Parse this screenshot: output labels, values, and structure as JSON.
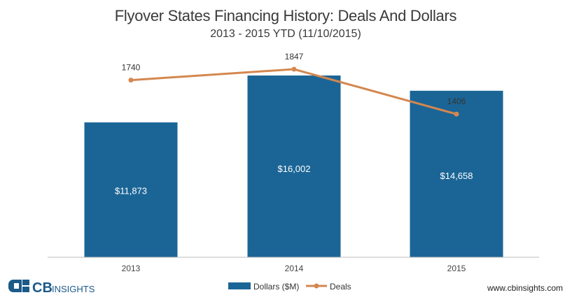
{
  "chart_data": {
    "type": "bar",
    "title": "Flyover States Financing History: Deals And Dollars",
    "subtitle": "2013 - 2015 YTD (11/10/2015)",
    "categories": [
      "2013",
      "2014",
      "2015"
    ],
    "series": [
      {
        "name": "Dollars ($M)",
        "type": "bar",
        "values": [
          11873,
          16002,
          14658
        ],
        "labels": [
          "$11,873",
          "$16,002",
          "$14,658"
        ],
        "color": "#1b6596"
      },
      {
        "name": "Deals",
        "type": "line",
        "values": [
          1740,
          1847,
          1406
        ],
        "labels": [
          "1740",
          "1847",
          "1406"
        ],
        "color": "#d4874f"
      }
    ],
    "bar_ylim": [
      0,
      20000
    ],
    "line_ylim": [
      0,
      2200
    ],
    "legend_position": "bottom"
  },
  "brand": {
    "logo_text_cb": "CB",
    "logo_text_insights": "INSIGHTS",
    "website": "www.cbinsights.com"
  },
  "colors": {
    "bar": "#1b6596",
    "line": "#d4874f",
    "axis": "#bbbbbb",
    "logo": "#1b5a89"
  }
}
